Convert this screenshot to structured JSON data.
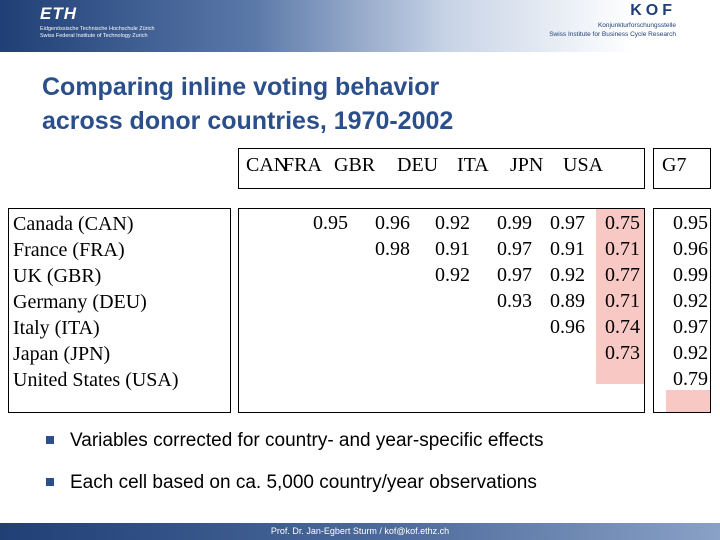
{
  "header": {
    "eth_logo": "ETH",
    "eth_line1": "Eidgenössische Technische Hochschule Zürich",
    "eth_line2": "Swiss Federal Institute of Technology Zurich",
    "kof_logo": "KOF",
    "kof_line1": "Konjunkturforschungsstelle",
    "kof_line2": "Swiss Institute for Business Cycle Research"
  },
  "title_line1": "Comparing inline voting behavior",
  "title_line2": "across donor countries, 1970-2002",
  "table": {
    "column_headers": [
      "CAN",
      "FRA",
      "GBR",
      "DEU",
      "ITA",
      "JPN",
      "USA"
    ],
    "g7_header": "G7",
    "row_labels": [
      "Canada (CAN)",
      "France (FRA)",
      "UK (GBR)",
      "Germany (DEU)",
      "Italy (ITA)",
      "Japan (JPN)",
      "United States (USA)"
    ],
    "rows": [
      [
        "",
        "0.95",
        "0.96",
        "0.92",
        "0.99",
        "0.97",
        "0.75"
      ],
      [
        "",
        "",
        "0.98",
        "0.91",
        "0.97",
        "0.91",
        "0.71"
      ],
      [
        "",
        "",
        "",
        "0.92",
        "0.97",
        "0.92",
        "0.77"
      ],
      [
        "",
        "",
        "",
        "",
        "0.93",
        "0.89",
        "0.71"
      ],
      [
        "",
        "",
        "",
        "",
        "",
        "0.96",
        "0.74"
      ],
      [
        "",
        "",
        "",
        "",
        "",
        "",
        "0.73"
      ],
      [
        "",
        "",
        "",
        "",
        "",
        "",
        ""
      ]
    ],
    "g7_values": [
      "0.95",
      "0.96",
      "0.99",
      "0.92",
      "0.97",
      "0.92",
      "0.79"
    ],
    "highlight_color": "#f7c8c4"
  },
  "bullets": [
    "Variables corrected for country- and year-specific effects",
    "Each cell based on ca. 5,000 country/year observations"
  ],
  "footer": "Prof. Dr. Jan-Egbert Sturm / kof@kof.ethz.ch",
  "colors": {
    "title": "#2b4f8a",
    "banner_dark": "#1f3f76"
  }
}
